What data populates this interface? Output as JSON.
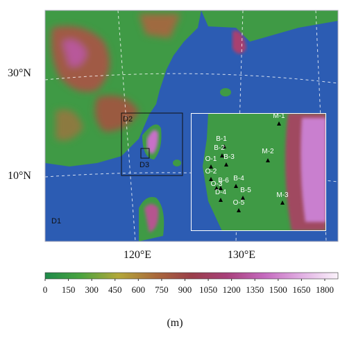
{
  "map": {
    "lat_labels": [
      "30°N",
      "10°N"
    ],
    "lon_labels": [
      "120°E",
      "130°E"
    ],
    "domains": [
      "D1",
      "D2",
      "D3"
    ],
    "stations": [
      "M-1",
      "B-1",
      "B-2",
      "M-2",
      "O-1",
      "B-3",
      "O-2",
      "B-4",
      "O-3",
      "B-6",
      "D-4",
      "B-5",
      "O-5",
      "M-3"
    ]
  },
  "colorbar": {
    "clim": [
      0,
      1885
    ],
    "ticks": [
      0,
      150,
      300,
      450,
      600,
      750,
      900,
      1050,
      1200,
      1350,
      1500,
      1650,
      1800
    ],
    "label": "(m)"
  }
}
